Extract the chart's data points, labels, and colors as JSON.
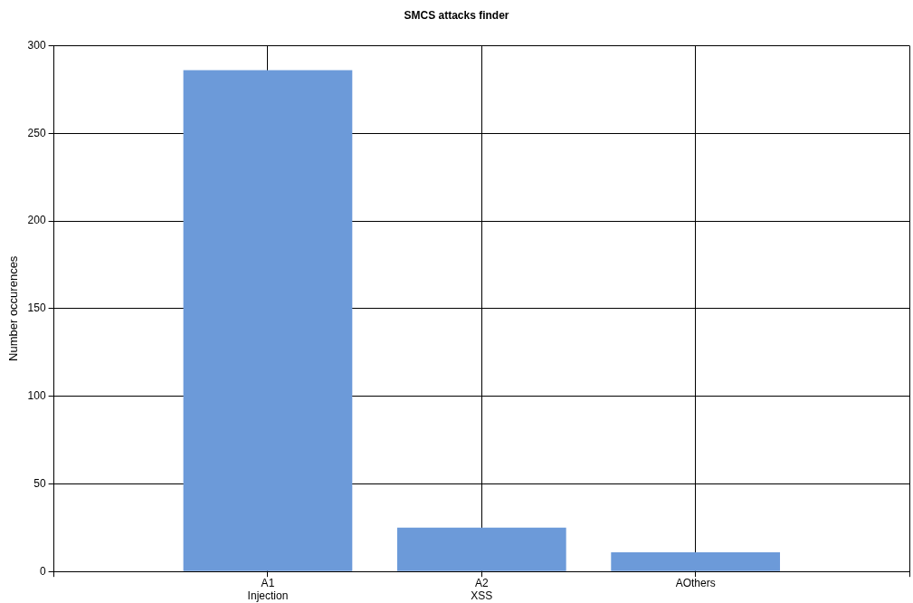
{
  "chart_data": {
    "type": "bar",
    "title": "SMCS attacks finder",
    "ylabel": "Number occurences",
    "categories": [
      null,
      "A1\nInjection",
      "A2\nXSS",
      "AOthers",
      null
    ],
    "values": [
      null,
      286,
      25,
      11,
      null
    ],
    "color": "#6c9ad9",
    "ylim": [
      0,
      300
    ],
    "yticks": [
      0,
      50,
      100,
      150,
      200,
      250,
      300
    ],
    "grid": true,
    "legend": false
  }
}
